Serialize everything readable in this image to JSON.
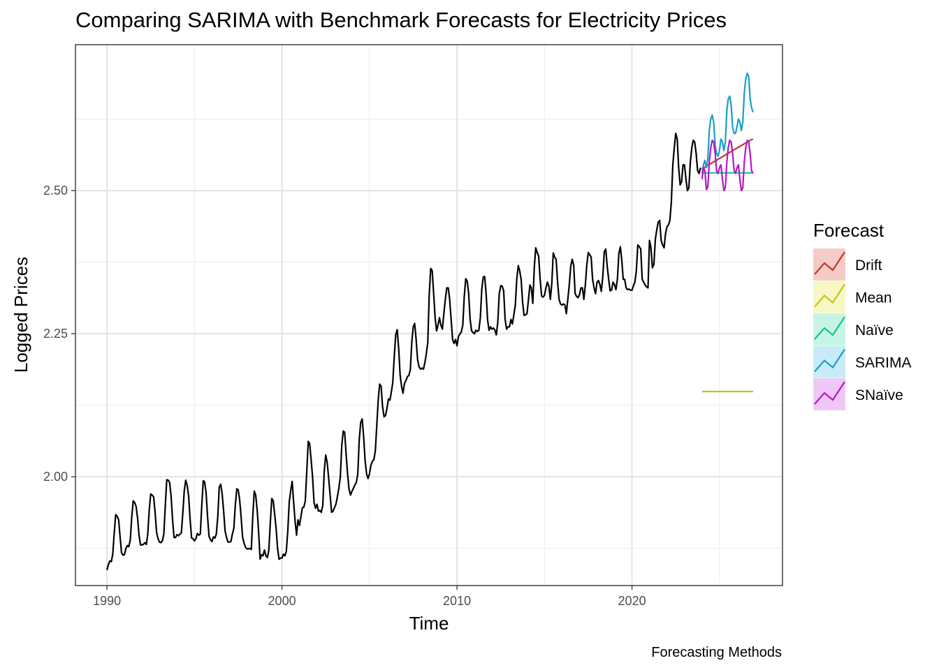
{
  "chart_data": {
    "type": "line",
    "title": "Comparing SARIMA with Benchmark Forecasts for Electricity Prices",
    "xlabel": "Time",
    "ylabel": "Logged Prices",
    "caption": "Forecasting Methods",
    "xlim": [
      1988.2,
      2028.6
    ],
    "ylim": [
      1.81,
      2.755
    ],
    "x_ticks": [
      1990,
      2000,
      2010,
      2020
    ],
    "x_tick_labels": [
      "1990",
      "2000",
      "2010",
      "2020"
    ],
    "y_ticks": [
      2.0,
      2.25,
      2.5
    ],
    "y_tick_labels": [
      "2.00",
      "2.25",
      "2.50"
    ],
    "grid": true,
    "legend": {
      "title": "Forecast",
      "placement": "right",
      "entries": [
        {
          "label": "Drift",
          "color": "#c0392b",
          "fill": "#f5cbc6"
        },
        {
          "label": "Mean",
          "color": "#c4c41a",
          "fill": "#f8f7c6"
        },
        {
          "label": "Naïve",
          "color": "#17c396",
          "fill": "#c6f5e6"
        },
        {
          "label": "SARIMA",
          "color": "#1b9ec4",
          "fill": "#c7ecf7"
        },
        {
          "label": "SNaïve",
          "color": "#b516c6",
          "fill": "#efc8f6"
        }
      ]
    },
    "series": [
      {
        "color": "#000000",
        "x_start": 1990.0,
        "x_step": 0.0833333,
        "values": [
          1.837,
          1.847,
          1.853,
          1.852,
          1.865,
          1.902,
          1.934,
          1.931,
          1.925,
          1.895,
          1.867,
          1.863,
          1.864,
          1.875,
          1.88,
          1.878,
          1.89,
          1.93,
          1.958,
          1.955,
          1.948,
          1.928,
          1.898,
          1.881,
          1.881,
          1.882,
          1.885,
          1.882,
          1.9,
          1.942,
          1.97,
          1.968,
          1.965,
          1.938,
          1.903,
          1.892,
          1.886,
          1.885,
          1.888,
          1.9,
          1.95,
          1.995,
          1.994,
          1.99,
          1.966,
          1.925,
          1.894,
          1.894,
          1.899,
          1.897,
          1.9,
          1.902,
          1.935,
          1.975,
          1.994,
          1.985,
          1.966,
          1.926,
          1.893,
          1.892,
          1.888,
          1.892,
          1.901,
          1.898,
          1.9,
          1.95,
          1.993,
          1.991,
          1.972,
          1.93,
          1.896,
          1.89,
          1.887,
          1.895,
          1.893,
          1.9,
          1.93,
          1.982,
          1.987,
          1.97,
          1.94,
          1.905,
          1.894,
          1.886,
          1.886,
          1.887,
          1.9,
          1.91,
          1.95,
          1.979,
          1.977,
          1.96,
          1.93,
          1.895,
          1.884,
          1.877,
          1.874,
          1.874,
          1.875,
          1.873,
          1.93,
          1.975,
          1.968,
          1.942,
          1.903,
          1.856,
          1.864,
          1.862,
          1.872,
          1.862,
          1.859,
          1.872,
          1.92,
          1.962,
          1.958,
          1.935,
          1.91,
          1.875,
          1.856,
          1.858,
          1.858,
          1.865,
          1.862,
          1.87,
          1.905,
          1.956,
          1.976,
          1.992,
          1.955,
          1.922,
          1.898,
          1.925,
          1.915,
          1.93,
          1.946,
          1.947,
          1.958,
          2.01,
          2.062,
          2.058,
          2.03,
          2.0,
          1.955,
          1.945,
          1.952,
          1.94,
          1.941,
          1.938,
          1.95,
          2.01,
          2.038,
          2.025,
          1.998,
          1.968,
          1.938,
          1.94,
          1.946,
          1.952,
          1.965,
          1.98,
          2.0,
          2.055,
          2.08,
          2.078,
          2.04,
          2.005,
          1.978,
          1.968,
          1.975,
          1.98,
          1.986,
          1.99,
          2.005,
          2.065,
          2.095,
          2.101,
          2.07,
          2.028,
          2.005,
          1.997,
          2.005,
          2.02,
          2.027,
          2.03,
          2.045,
          2.09,
          2.135,
          2.162,
          2.158,
          2.122,
          2.105,
          2.107,
          2.12,
          2.136,
          2.134,
          2.148,
          2.165,
          2.21,
          2.248,
          2.257,
          2.225,
          2.178,
          2.158,
          2.146,
          2.163,
          2.168,
          2.175,
          2.177,
          2.187,
          2.235,
          2.262,
          2.268,
          2.24,
          2.205,
          2.192,
          2.188,
          2.19,
          2.188,
          2.2,
          2.215,
          2.235,
          2.32,
          2.364,
          2.36,
          2.32,
          2.278,
          2.255,
          2.265,
          2.278,
          2.265,
          2.258,
          2.285,
          2.31,
          2.33,
          2.33,
          2.31,
          2.275,
          2.24,
          2.233,
          2.24,
          2.229,
          2.245,
          2.25,
          2.253,
          2.265,
          2.315,
          2.346,
          2.342,
          2.32,
          2.275,
          2.255,
          2.252,
          2.25,
          2.256,
          2.254,
          2.256,
          2.278,
          2.328,
          2.349,
          2.35,
          2.32,
          2.274,
          2.256,
          2.262,
          2.258,
          2.26,
          2.256,
          2.248,
          2.27,
          2.32,
          2.334,
          2.333,
          2.325,
          2.275,
          2.258,
          2.262,
          2.262,
          2.275,
          2.267,
          2.283,
          2.3,
          2.346,
          2.369,
          2.36,
          2.345,
          2.305,
          2.282,
          2.283,
          2.285,
          2.31,
          2.335,
          2.33,
          2.303,
          2.365,
          2.4,
          2.392,
          2.385,
          2.345,
          2.316,
          2.314,
          2.317,
          2.33,
          2.34,
          2.333,
          2.31,
          2.338,
          2.391,
          2.384,
          2.38,
          2.34,
          2.31,
          2.302,
          2.3,
          2.302,
          2.3,
          2.285,
          2.31,
          2.335,
          2.368,
          2.38,
          2.37,
          2.32,
          2.315,
          2.313,
          2.318,
          2.33,
          2.33,
          2.31,
          2.335,
          2.37,
          2.392,
          2.388,
          2.384,
          2.345,
          2.33,
          2.32,
          2.34,
          2.343,
          2.336,
          2.324,
          2.35,
          2.393,
          2.398,
          2.368,
          2.345,
          2.325,
          2.326,
          2.34,
          2.336,
          2.327,
          2.345,
          2.39,
          2.402,
          2.378,
          2.345,
          2.345,
          2.33,
          2.327,
          2.328,
          2.326,
          2.326,
          2.334,
          2.34,
          2.36,
          2.405,
          2.402,
          2.398,
          2.345,
          2.34,
          2.335,
          2.332,
          2.33,
          2.413,
          2.4,
          2.365,
          2.371,
          2.415,
          2.432,
          2.445,
          2.448,
          2.413,
          2.405,
          2.4,
          2.425,
          2.437,
          2.44,
          2.448,
          2.48,
          2.545,
          2.575,
          2.6,
          2.59,
          2.54,
          2.51,
          2.515,
          2.545,
          2.545,
          2.52,
          2.5,
          2.505,
          2.55,
          2.575,
          2.588,
          2.585,
          2.565,
          2.535,
          2.53,
          2.54
        ]
      },
      {
        "name": "Drift",
        "color": "#c0392b",
        "x_start": 2024.0,
        "x_step": 0.0833333,
        "values": [
          2.538,
          2.54,
          2.541,
          2.543,
          2.544,
          2.546,
          2.547,
          2.549,
          2.55,
          2.552,
          2.553,
          2.555,
          2.556,
          2.558,
          2.559,
          2.561,
          2.562,
          2.564,
          2.565,
          2.567,
          2.568,
          2.57,
          2.571,
          2.573,
          2.574,
          2.576,
          2.577,
          2.579,
          2.58,
          2.582,
          2.583,
          2.585,
          2.586,
          2.588,
          2.589,
          2.59
        ]
      },
      {
        "name": "Mean",
        "color": "#c4c41a",
        "x": [
          2024.0,
          2026.92
        ],
        "values": [
          2.149,
          2.149
        ]
      },
      {
        "name": "Naïve",
        "color": "#17c396",
        "x": [
          2024.0,
          2026.92
        ],
        "values": [
          2.531,
          2.531
        ]
      },
      {
        "name": "SARIMA",
        "color": "#1b9ec4",
        "x_start": 2024.0,
        "x_step": 0.0833333,
        "values": [
          2.53,
          2.545,
          2.553,
          2.54,
          2.555,
          2.605,
          2.625,
          2.632,
          2.62,
          2.58,
          2.565,
          2.56,
          2.57,
          2.59,
          2.585,
          2.57,
          2.585,
          2.64,
          2.66,
          2.665,
          2.65,
          2.61,
          2.6,
          2.6,
          2.612,
          2.625,
          2.62,
          2.605,
          2.62,
          2.67,
          2.695,
          2.705,
          2.7,
          2.66,
          2.645,
          2.637
        ]
      },
      {
        "name": "SNaïve",
        "color": "#b516c6",
        "x_start": 2024.0,
        "x_step": 0.0833333,
        "values": [
          2.52,
          2.54,
          2.535,
          2.502,
          2.506,
          2.55,
          2.575,
          2.588,
          2.585,
          2.565,
          2.535,
          2.53,
          2.54,
          2.545,
          2.52,
          2.5,
          2.505,
          2.55,
          2.575,
          2.588,
          2.585,
          2.565,
          2.535,
          2.53,
          2.54,
          2.545,
          2.52,
          2.5,
          2.505,
          2.55,
          2.575,
          2.588,
          2.585,
          2.565,
          2.535,
          2.53
        ]
      }
    ]
  }
}
